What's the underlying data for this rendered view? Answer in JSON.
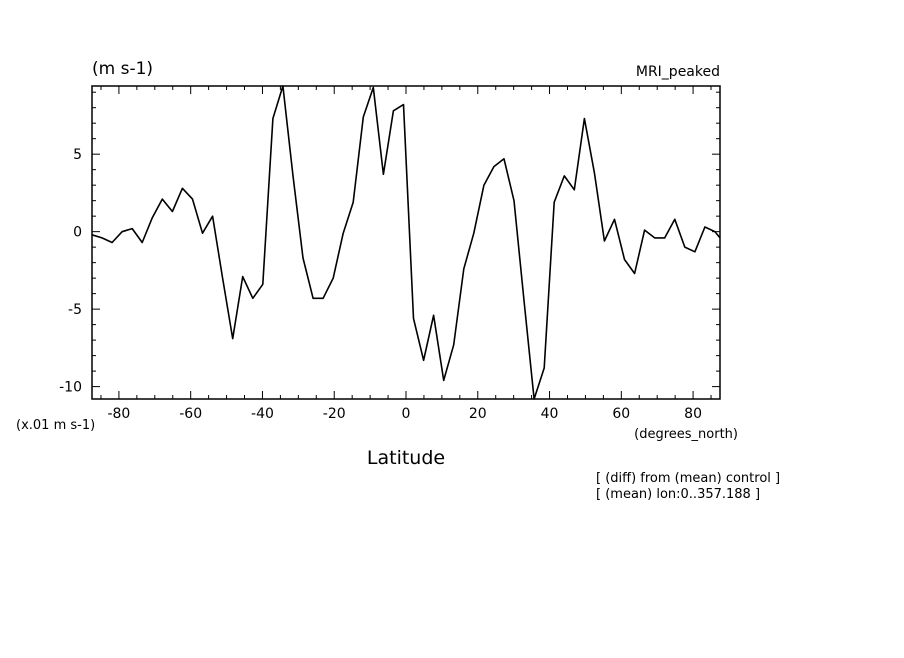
{
  "chart_data": {
    "type": "line",
    "title": "MRI_peaked",
    "unit_label": "(m s-1)",
    "scale_note": "(x.01 m s-1)",
    "xlabel": "Latitude",
    "x_units": "(degrees_north)",
    "notes": [
      "[ (diff) from (mean) control ]",
      "[ (mean) lon:0..357.188 ]"
    ],
    "xlim": [
      -87.5,
      87.5
    ],
    "ylim": [
      -10.8,
      9.4
    ],
    "xticks": [
      -80,
      -60,
      -40,
      -20,
      0,
      20,
      40,
      60,
      80
    ],
    "xtick_labels": [
      "-80",
      "-60",
      "-40",
      "-20",
      "0",
      "20",
      "40",
      "60",
      "80"
    ],
    "yticks": [
      -10,
      -5,
      0,
      5
    ],
    "ytick_labels": [
      "-10",
      "-5",
      "0",
      "5"
    ],
    "grid": false,
    "series": [
      {
        "x": [
          -87.5,
          -84.7,
          -81.9,
          -79.1,
          -76.3,
          -73.5,
          -70.7,
          -67.9,
          -65.1,
          -62.3,
          -59.5,
          -56.7,
          -53.9,
          -51.1,
          -48.3,
          -45.5,
          -42.7,
          -39.9,
          -37.1,
          -34.3,
          -31.5,
          -28.7,
          -25.9,
          -23.1,
          -20.3,
          -17.5,
          -14.7,
          -11.9,
          -9.1,
          -6.3,
          -3.5,
          -0.7,
          2.1,
          4.9,
          7.7,
          10.5,
          13.3,
          16.1,
          18.9,
          21.7,
          24.5,
          27.3,
          30.1,
          32.9,
          35.7,
          38.5,
          41.3,
          44.1,
          46.9,
          49.7,
          52.5,
          55.3,
          58.1,
          60.9,
          63.7,
          66.5,
          69.3,
          72.1,
          74.9,
          77.7,
          80.5,
          83.3,
          86.1,
          87.5
        ],
        "values": [
          -0.2,
          -0.4,
          -0.7,
          0.0,
          0.2,
          -0.7,
          0.9,
          2.1,
          1.3,
          2.8,
          2.1,
          -0.1,
          1.0,
          -3.0,
          -6.9,
          -2.9,
          -4.3,
          -3.4,
          7.3,
          9.4,
          3.6,
          -1.7,
          -4.3,
          -4.3,
          -3.0,
          -0.1,
          1.9,
          7.4,
          9.3,
          3.7,
          7.8,
          8.2,
          -5.6,
          -8.3,
          -5.4,
          -9.6,
          -7.3,
          -2.4,
          -0.1,
          3.0,
          4.2,
          4.7,
          2.0,
          -4.5,
          -10.8,
          -8.8,
          1.9,
          3.6,
          2.7,
          7.3,
          3.8,
          -0.6,
          0.8,
          -1.8,
          -2.7,
          0.1,
          -0.4,
          -0.4,
          0.8,
          -1.0,
          -1.3,
          0.3,
          0.0,
          -0.4
        ]
      }
    ]
  }
}
